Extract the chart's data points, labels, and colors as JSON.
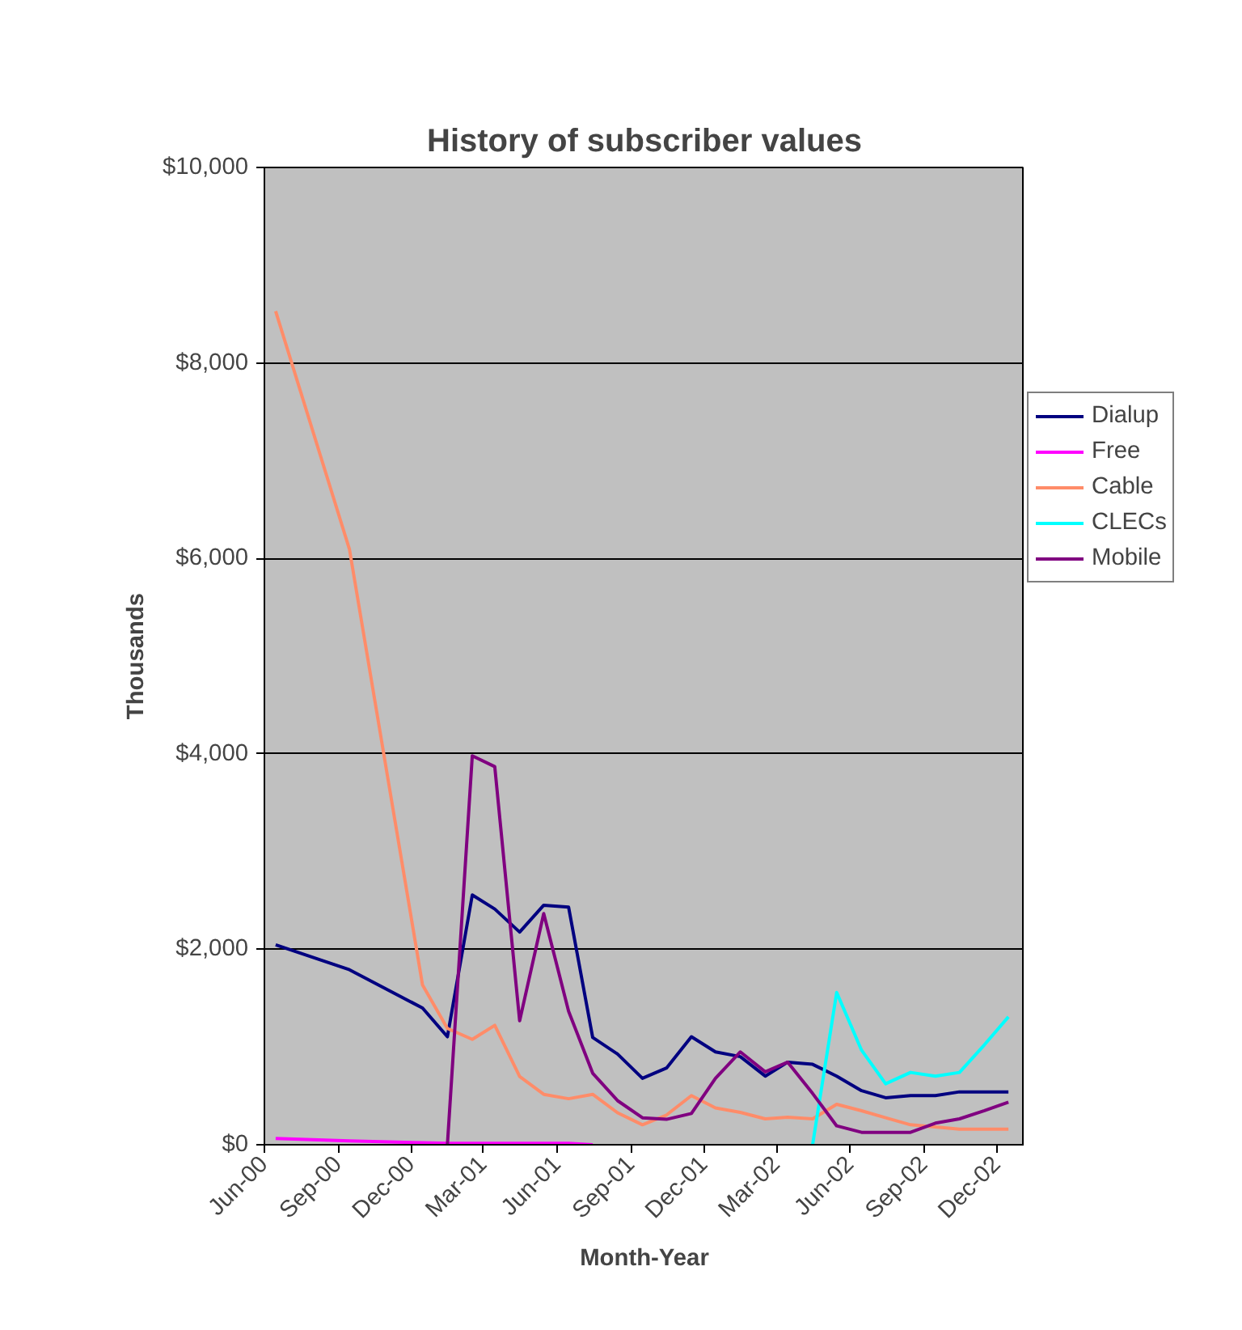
{
  "chart_data": {
    "type": "line",
    "title": "History of subscriber values",
    "xlabel": "Month-Year",
    "ylabel": "Thousands",
    "x": [
      "2000-06-15",
      "2000-09-15",
      "2000-12-15",
      "2001-01-15",
      "2001-02-15",
      "2001-03-15",
      "2001-04-15",
      "2001-05-15",
      "2001-06-15",
      "2001-07-15",
      "2001-08-15",
      "2001-09-15",
      "2001-10-15",
      "2001-11-15",
      "2001-12-15",
      "2002-01-15",
      "2002-02-15",
      "2002-03-15",
      "2002-04-15",
      "2002-05-15",
      "2002-06-15",
      "2002-07-15",
      "2002-08-15",
      "2002-09-15",
      "2002-10-15",
      "2002-11-15",
      "2002-12-15"
    ],
    "series": [
      {
        "name": "Dialup",
        "color": "#000080",
        "values": [
          2046,
          1791,
          1399,
          1105,
          2556,
          2412,
          2176,
          2451,
          2431,
          1098,
          928,
          680,
          785,
          1105,
          950,
          901,
          702,
          845,
          823,
          702,
          553,
          481,
          503,
          503,
          541,
          541,
          541
        ]
      },
      {
        "name": "Free",
        "color": "#ff00ff",
        "values": [
          65,
          40,
          20,
          15,
          15,
          15,
          15,
          15,
          15,
          0,
          null,
          null,
          null,
          null,
          null,
          null,
          null,
          null,
          null,
          null,
          null,
          null,
          null,
          null,
          null,
          null,
          null
        ]
      },
      {
        "name": "Cable",
        "color": "#ff8c69",
        "values": [
          8530,
          6091,
          1634,
          1190,
          1078,
          1222,
          699,
          516,
          471,
          516,
          327,
          204,
          304,
          503,
          376,
          331,
          265,
          282,
          265,
          414,
          348,
          276,
          204,
          182,
          160,
          160,
          160
        ]
      },
      {
        "name": "CLECs",
        "color": "#00ffff",
        "values": [
          null,
          null,
          null,
          null,
          null,
          null,
          null,
          null,
          null,
          null,
          null,
          null,
          null,
          null,
          null,
          null,
          null,
          null,
          0,
          1558,
          967,
          624,
          740,
          702,
          740,
          1022,
          1309
        ]
      },
      {
        "name": "Mobile",
        "color": "#800080",
        "values": [
          null,
          null,
          null,
          0,
          3980,
          3869,
          1268,
          2366,
          1366,
          732,
          451,
          276,
          260,
          320,
          680,
          950,
          746,
          845,
          525,
          193,
          127,
          127,
          127,
          221,
          265,
          348,
          436
        ]
      }
    ],
    "xlim": [
      "2000-06-01",
      "2003-01-04"
    ],
    "xticks": [
      {
        "value": "2000-06-01",
        "label": "Jun-00"
      },
      {
        "value": "2000-09-01",
        "label": "Sep-00"
      },
      {
        "value": "2000-12-01",
        "label": "Dec-00"
      },
      {
        "value": "2001-03-01",
        "label": "Mar-01"
      },
      {
        "value": "2001-06-01",
        "label": "Jun-01"
      },
      {
        "value": "2001-09-01",
        "label": "Sep-01"
      },
      {
        "value": "2001-12-01",
        "label": "Dec-01"
      },
      {
        "value": "2002-03-01",
        "label": "Mar-02"
      },
      {
        "value": "2002-06-01",
        "label": "Jun-02"
      },
      {
        "value": "2002-09-01",
        "label": "Sep-02"
      },
      {
        "value": "2002-12-01",
        "label": "Dec-02"
      }
    ],
    "ylim": [
      0,
      10000
    ],
    "yticks": [
      {
        "value": 0,
        "label": "$0"
      },
      {
        "value": 2000,
        "label": "$2,000"
      },
      {
        "value": 4000,
        "label": "$4,000"
      },
      {
        "value": 6000,
        "label": "$6,000"
      },
      {
        "value": 8000,
        "label": "$8,000"
      },
      {
        "value": 10000,
        "label": "$10,000"
      }
    ],
    "grid": "y",
    "legend": "right"
  }
}
